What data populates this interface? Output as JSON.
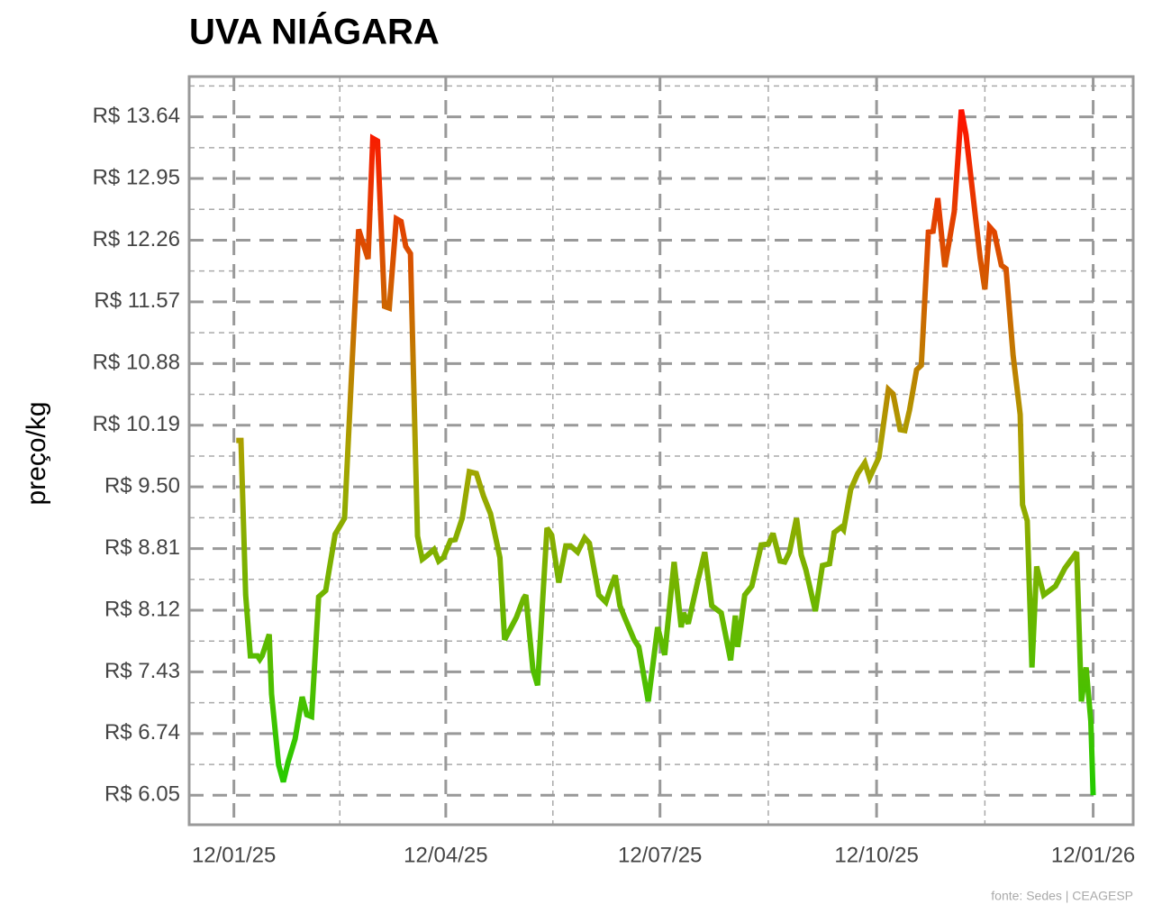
{
  "chart_data": {
    "type": "line",
    "title": "UVA NIÁGARA",
    "ylabel": "preço/kg",
    "source": "fonte: Sedes | CEAGESP",
    "colors": [
      "#22cc00",
      "#a8a400",
      "#ff1100"
    ],
    "grid": true,
    "xlim": [
      "2024-12-24",
      "2026-01-29"
    ],
    "ylim": [
      5.72,
      14.09
    ],
    "xticks": [
      {
        "value": "2025-01-12",
        "label": "12/01/25"
      },
      {
        "value": "2025-04-12",
        "label": "12/04/25"
      },
      {
        "value": "2025-07-12",
        "label": "12/07/25"
      },
      {
        "value": "2025-10-12",
        "label": "12/10/25"
      },
      {
        "value": "2026-01-12",
        "label": "12/01/26"
      }
    ],
    "yticks": [
      {
        "value": 6.05,
        "label": "R$ 6.05"
      },
      {
        "value": 6.74,
        "label": "R$ 6.74"
      },
      {
        "value": 7.43,
        "label": "R$ 7.43"
      },
      {
        "value": 8.12,
        "label": "R$ 8.12"
      },
      {
        "value": 8.81,
        "label": "R$ 8.81"
      },
      {
        "value": 9.5,
        "label": "R$ 9.50"
      },
      {
        "value": 10.19,
        "label": "R$ 10.19"
      },
      {
        "value": 10.88,
        "label": "R$ 10.88"
      },
      {
        "value": 11.57,
        "label": "R$ 11.57"
      },
      {
        "value": 12.26,
        "label": "R$ 12.26"
      },
      {
        "value": 12.95,
        "label": "R$ 12.95"
      },
      {
        "value": 13.64,
        "label": "R$ 13.64"
      }
    ],
    "x": [
      "2025-01-13",
      "2025-01-15",
      "2025-01-17",
      "2025-01-19",
      "2025-01-22",
      "2025-01-23",
      "2025-01-24",
      "2025-01-27",
      "2025-01-28",
      "2025-01-31",
      "2025-02-02",
      "2025-02-04",
      "2025-02-07",
      "2025-02-10",
      "2025-02-12",
      "2025-02-14",
      "2025-02-17",
      "2025-02-20",
      "2025-02-24",
      "2025-02-28",
      "2025-03-06",
      "2025-03-10",
      "2025-03-12",
      "2025-03-14",
      "2025-03-17",
      "2025-03-19",
      "2025-03-22",
      "2025-03-24",
      "2025-03-26",
      "2025-03-28",
      "2025-03-31",
      "2025-04-02",
      "2025-04-04",
      "2025-04-07",
      "2025-04-09",
      "2025-04-11",
      "2025-04-14",
      "2025-04-16",
      "2025-04-19",
      "2025-04-22",
      "2025-04-25",
      "2025-04-28",
      "2025-05-01",
      "2025-05-05",
      "2025-05-07",
      "2025-05-09",
      "2025-05-12",
      "2025-05-15",
      "2025-05-16",
      "2025-05-19",
      "2025-05-21",
      "2025-05-25",
      "2025-05-27",
      "2025-05-30",
      "2025-06-02",
      "2025-06-04",
      "2025-06-07",
      "2025-06-10",
      "2025-06-12",
      "2025-06-16",
      "2025-06-19",
      "2025-06-21",
      "2025-06-23",
      "2025-06-25",
      "2025-06-27",
      "2025-07-01",
      "2025-07-03",
      "2025-07-07",
      "2025-07-11",
      "2025-07-14",
      "2025-07-18",
      "2025-07-21",
      "2025-07-22",
      "2025-07-24",
      "2025-07-28",
      "2025-07-31",
      "2025-08-03",
      "2025-08-07",
      "2025-08-11",
      "2025-08-13",
      "2025-08-14",
      "2025-08-17",
      "2025-08-20",
      "2025-08-24",
      "2025-08-27",
      "2025-08-29",
      "2025-09-01",
      "2025-09-03",
      "2025-09-05",
      "2025-09-08",
      "2025-09-10",
      "2025-09-12",
      "2025-09-16",
      "2025-09-19",
      "2025-09-22",
      "2025-09-24",
      "2025-09-27",
      "2025-09-28",
      "2025-10-01",
      "2025-10-04",
      "2025-10-07",
      "2025-10-09",
      "2025-10-13",
      "2025-10-17",
      "2025-10-19",
      "2025-10-22",
      "2025-10-24",
      "2025-10-26",
      "2025-10-29",
      "2025-10-31",
      "2025-11-03",
      "2025-11-05",
      "2025-11-07",
      "2025-11-10",
      "2025-11-14",
      "2025-11-17",
      "2025-11-19",
      "2025-11-25",
      "2025-11-27",
      "2025-11-29",
      "2025-12-01",
      "2025-12-04",
      "2025-12-06",
      "2025-12-09",
      "2025-12-12",
      "2025-12-13",
      "2025-12-15",
      "2025-12-17",
      "2025-12-19",
      "2025-12-22",
      "2025-12-27",
      "2025-12-31",
      "2026-01-05",
      "2026-01-07",
      "2026-01-09",
      "2026-01-11",
      "2026-01-12"
    ],
    "values": [
      10.02,
      10.02,
      8.29,
      7.61,
      7.61,
      7.57,
      7.61,
      7.85,
      7.18,
      6.39,
      6.2,
      6.42,
      6.68,
      7.15,
      6.95,
      6.93,
      8.27,
      8.34,
      8.97,
      9.15,
      12.38,
      12.05,
      13.4,
      13.37,
      11.52,
      11.5,
      12.5,
      12.47,
      12.19,
      12.11,
      8.95,
      8.69,
      8.73,
      8.8,
      8.67,
      8.71,
      8.9,
      8.91,
      9.15,
      9.67,
      9.65,
      9.4,
      9.2,
      8.71,
      7.79,
      7.89,
      8.04,
      8.25,
      8.29,
      7.46,
      7.28,
      9.04,
      8.96,
      8.43,
      8.84,
      8.84,
      8.77,
      8.93,
      8.87,
      8.29,
      8.21,
      8.37,
      8.51,
      8.17,
      8.04,
      7.79,
      7.71,
      7.1,
      7.93,
      7.62,
      8.66,
      7.93,
      8.09,
      7.97,
      8.44,
      8.77,
      8.17,
      8.09,
      7.56,
      8.06,
      7.71,
      8.29,
      8.39,
      8.85,
      8.86,
      8.98,
      8.67,
      8.66,
      8.77,
      9.15,
      8.74,
      8.57,
      8.11,
      8.62,
      8.64,
      8.99,
      9.05,
      9.02,
      9.47,
      9.65,
      9.77,
      9.6,
      9.83,
      10.59,
      10.54,
      10.14,
      10.13,
      10.36,
      10.81,
      10.86,
      12.35,
      12.36,
      12.73,
      11.96,
      12.58,
      13.72,
      13.44,
      12.06,
      11.71,
      12.41,
      12.35,
      11.98,
      11.94,
      10.97,
      10.31,
      9.3,
      9.12,
      7.48,
      8.61,
      8.29,
      8.39,
      8.59,
      8.77,
      7.1,
      7.48,
      6.88,
      6.05
    ]
  }
}
